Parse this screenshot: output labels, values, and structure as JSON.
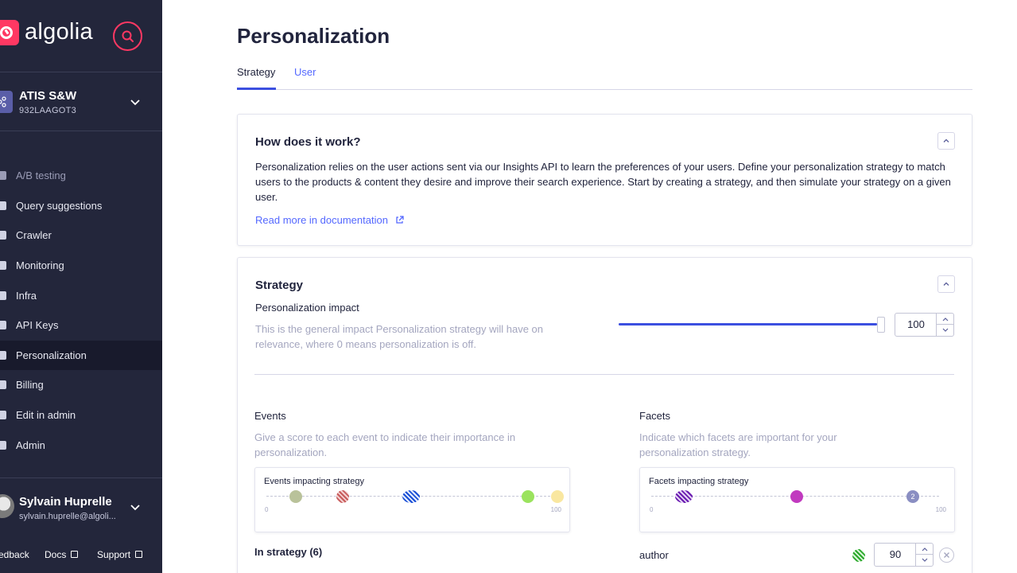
{
  "sidebar": {
    "logo_text": "algolia",
    "app": {
      "name": "ATIS S&W",
      "id": "932LAAGOT3"
    },
    "nav": [
      {
        "label": "A/B testing",
        "icon": "ab-testing-icon",
        "muted": true
      },
      {
        "label": "Query suggestions",
        "icon": "query-suggestions-icon"
      },
      {
        "label": "Crawler",
        "icon": "crawler-icon"
      },
      {
        "label": "Monitoring",
        "icon": "monitoring-icon"
      },
      {
        "label": "Infra",
        "icon": "infra-icon"
      },
      {
        "label": "API Keys",
        "icon": "api-keys-icon"
      },
      {
        "label": "Personalization",
        "icon": "personalization-icon",
        "active": true
      },
      {
        "label": "Billing",
        "icon": "billing-icon"
      },
      {
        "label": "Edit in admin",
        "icon": "edit-icon"
      },
      {
        "label": "Admin",
        "icon": "admin-icon"
      }
    ],
    "user": {
      "name": "Sylvain Huprelle",
      "email": "sylvain.huprelle@algoli..."
    },
    "footer": {
      "feedback": "edback",
      "docs": "Docs",
      "support": "Support"
    }
  },
  "main": {
    "title": "Personalization",
    "tabs": [
      {
        "label": "Strategy",
        "active": true
      },
      {
        "label": "User",
        "active": false
      }
    ],
    "how": {
      "title": "How does it work?",
      "body": "Personalization relies on the user actions sent via our Insights API to learn the preferences of your users. Define your personalization strategy to match users to the products & content they desire and improve their search experience. Start by creating a strategy, and then simulate your strategy on a given user.",
      "link": "Read more in documentation"
    },
    "strategy": {
      "title": "Strategy",
      "impact_label": "Personalization impact",
      "impact_help": "This is the general impact Personalization strategy will have on relevance, where 0 means personalization is off.",
      "impact_value": "100",
      "impact_level": 1.0,
      "events": {
        "label": "Events",
        "help": "Give a score to each event to indicate their importance in personalization.",
        "chart_title": "Events impacting strategy",
        "min": "0",
        "max": "100",
        "in_strategy": "In strategy (6)"
      },
      "facets": {
        "label": "Facets",
        "help": "Indicate which facets are important for your personalization strategy.",
        "chart_title": "Facets impacting strategy",
        "min": "0",
        "max": "100",
        "dot_count": "2",
        "first_facet": {
          "name": "author",
          "value": "90"
        }
      }
    }
  },
  "colors": {
    "sidebar_bg": "#23263b",
    "accent": "#5468ff",
    "brand": "#ff3863"
  }
}
